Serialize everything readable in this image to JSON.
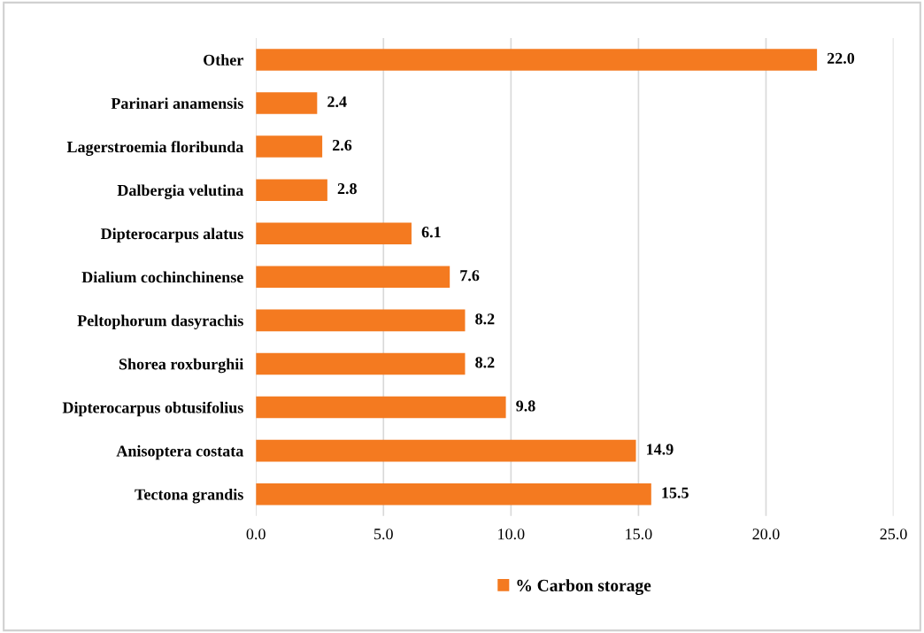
{
  "chart_data": {
    "type": "bar",
    "orientation": "horizontal",
    "categories": [
      "Other",
      "Parinari anamensis",
      "Lagerstroemia floribunda",
      "Dalbergia velutina",
      "Dipterocarpus alatus",
      "Dialium cochinchinense",
      "Peltophorum dasyrachis",
      "Shorea roxburghii",
      "Dipterocarpus obtusifolius",
      "Anisoptera costata",
      "Tectona grandis"
    ],
    "series": [
      {
        "name": "% Carbon storage",
        "color": "#f47a20",
        "values": [
          22.0,
          2.4,
          2.6,
          2.8,
          6.1,
          7.6,
          8.2,
          8.2,
          9.8,
          14.9,
          15.5
        ],
        "value_labels": [
          "22.0",
          "2.4",
          "2.6",
          "2.8",
          "6.1",
          "7.6",
          "8.2",
          "8.2",
          "9.8",
          "14.9",
          "15.5"
        ]
      }
    ],
    "xlim": [
      0,
      25
    ],
    "xticks": [
      {
        "value": 0,
        "label": "0.0"
      },
      {
        "value": 5,
        "label": "5.0"
      },
      {
        "value": 10,
        "label": "10.0"
      },
      {
        "value": 15,
        "label": "15.0"
      },
      {
        "value": 20,
        "label": "20.0"
      },
      {
        "value": 25,
        "label": "25.0"
      }
    ],
    "grid": "x",
    "legend": "bottom"
  }
}
